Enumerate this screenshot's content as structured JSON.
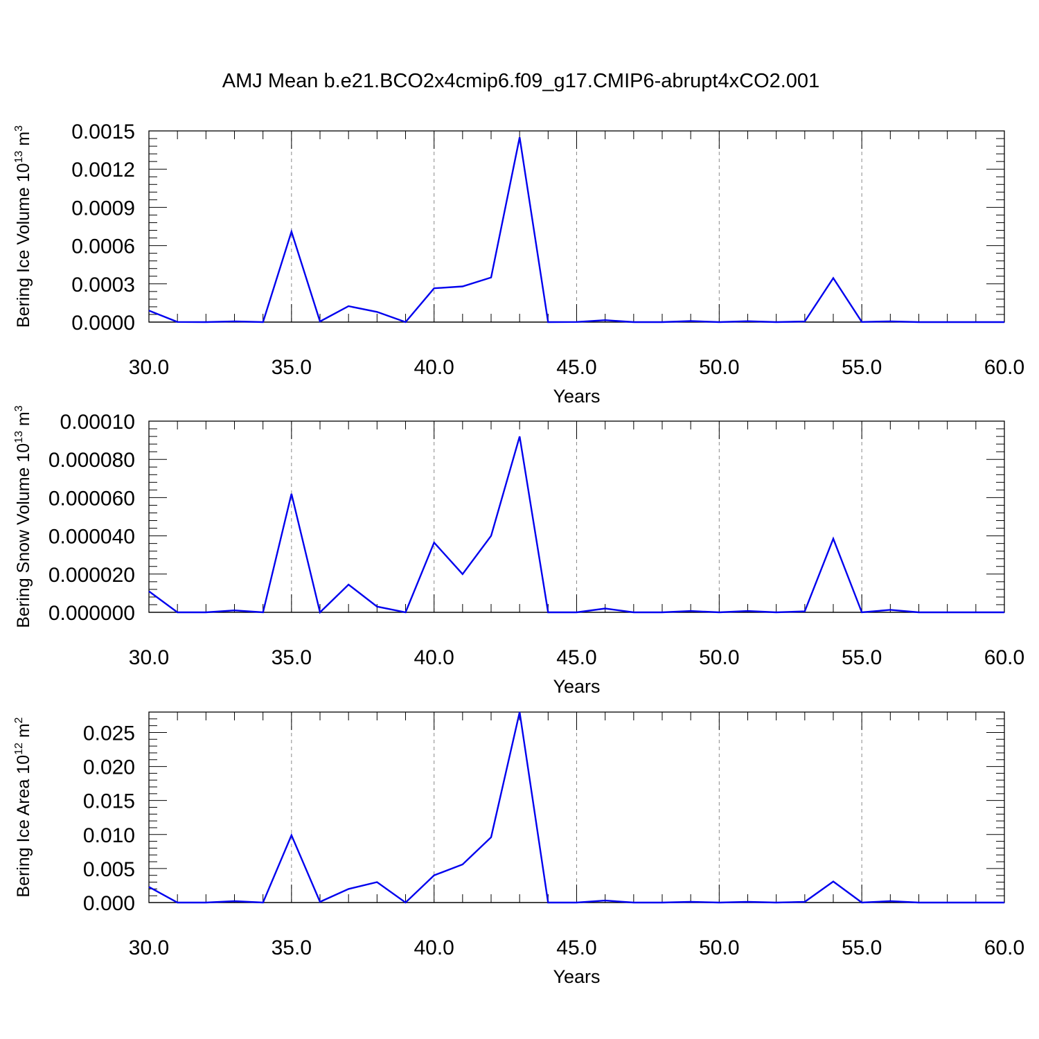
{
  "title": "AMJ Mean b.e21.BCO2x4cmip6.f09_g17.CMIP6-abrupt4xCO2.001",
  "colors": {
    "series": "#0000ee",
    "axes": "#000000",
    "grid": "#888888"
  },
  "chart_data": [
    {
      "type": "line",
      "xlabel": "Years",
      "ylabel": "Bering Ice Volume 10",
      "ylabel_sup": "13",
      "ylabel_unit": " m",
      "ylabel_unit_sup": "3",
      "xlim": [
        30,
        60
      ],
      "ylim": [
        0,
        0.0015
      ],
      "xticks": [
        30,
        35,
        40,
        45,
        50,
        55,
        60
      ],
      "xtick_labels": [
        "30.0",
        "35.0",
        "40.0",
        "45.0",
        "50.0",
        "55.0",
        "60.0"
      ],
      "yticks": [
        0,
        0.0003,
        0.0006,
        0.0009,
        0.0012,
        0.0015
      ],
      "ytick_labels": [
        "0.0000",
        "0.0003",
        "0.0006",
        "0.0009",
        "0.0012",
        "0.0015"
      ],
      "grid": "dashed vertical at major x ticks",
      "x": [
        30,
        31,
        32,
        33,
        34,
        35,
        36,
        37,
        38,
        39,
        40,
        41,
        42,
        43,
        44,
        45,
        46,
        47,
        48,
        49,
        50,
        51,
        52,
        53,
        54,
        55,
        56,
        57,
        58,
        59,
        60
      ],
      "series": [
        {
          "values": [
            9e-05,
            1e-06,
            0.0,
            6e-06,
            0.0,
            0.00071,
            5e-06,
            0.000125,
            8e-05,
            0.0,
            0.000265,
            0.00028,
            0.00035,
            0.00145,
            0.0,
            1e-06,
            1.5e-05,
            0.0,
            0.0,
            8e-06,
            0.0,
            7e-06,
            0.0,
            5e-06,
            0.000345,
            1e-06,
            6e-06,
            0.0,
            0.0,
            0.0,
            0.0
          ]
        }
      ]
    },
    {
      "type": "line",
      "xlabel": "Years",
      "ylabel": "Bering Snow Volume 10",
      "ylabel_sup": "13",
      "ylabel_unit": " m",
      "ylabel_unit_sup": "3",
      "xlim": [
        30,
        60
      ],
      "ylim": [
        0,
        0.0001
      ],
      "xticks": [
        30,
        35,
        40,
        45,
        50,
        55,
        60
      ],
      "xtick_labels": [
        "30.0",
        "35.0",
        "40.0",
        "45.0",
        "50.0",
        "55.0",
        "60.0"
      ],
      "yticks": [
        0,
        2e-05,
        4e-05,
        6e-05,
        8e-05,
        0.0001
      ],
      "ytick_labels": [
        "0.000000",
        "0.000020",
        "0.000040",
        "0.000060",
        "0.000080",
        "0.00010"
      ],
      "grid": "dashed vertical at major x ticks",
      "x": [
        30,
        31,
        32,
        33,
        34,
        35,
        36,
        37,
        38,
        39,
        40,
        41,
        42,
        43,
        44,
        45,
        46,
        47,
        48,
        49,
        50,
        51,
        52,
        53,
        54,
        55,
        56,
        57,
        58,
        59,
        60
      ],
      "series": [
        {
          "values": [
            1.1e-05,
            0.0,
            0.0,
            1e-06,
            0.0,
            6.2e-05,
            0.0,
            1.45e-05,
            3e-06,
            0.0,
            3.65e-05,
            2e-05,
            4e-05,
            9.2e-05,
            0.0,
            0.0,
            2e-06,
            0.0,
            0.0,
            7e-07,
            0.0,
            7e-07,
            0.0,
            5e-07,
            3.85e-05,
            0.0,
            1.3e-06,
            0.0,
            0.0,
            0.0,
            0.0
          ]
        }
      ]
    },
    {
      "type": "line",
      "xlabel": "Years",
      "ylabel": "Bering Ice Area 10",
      "ylabel_sup": "12",
      "ylabel_unit": " m",
      "ylabel_unit_sup": "2",
      "xlim": [
        30,
        60
      ],
      "ylim": [
        0,
        0.028
      ],
      "xticks": [
        30,
        35,
        40,
        45,
        50,
        55,
        60
      ],
      "xtick_labels": [
        "30.0",
        "35.0",
        "40.0",
        "45.0",
        "50.0",
        "55.0",
        "60.0"
      ],
      "yticks": [
        0,
        0.005,
        0.01,
        0.015,
        0.02,
        0.025
      ],
      "ytick_labels": [
        "0.000",
        "0.005",
        "0.010",
        "0.015",
        "0.020",
        "0.025"
      ],
      "grid": "dashed vertical at major x ticks",
      "x": [
        30,
        31,
        32,
        33,
        34,
        35,
        36,
        37,
        38,
        39,
        40,
        41,
        42,
        43,
        44,
        45,
        46,
        47,
        48,
        49,
        50,
        51,
        52,
        53,
        54,
        55,
        56,
        57,
        58,
        59,
        60
      ],
      "series": [
        {
          "values": [
            0.0023,
            0.0,
            0.0,
            0.0002,
            0.0,
            0.0099,
            0.0001,
            0.002,
            0.003,
            0.0,
            0.004,
            0.0056,
            0.0096,
            0.028,
            0.0,
            0.0,
            0.0003,
            0.0,
            0.0,
            0.0001,
            0.0,
            0.0001,
            0.0,
            0.0001,
            0.0031,
            0.0,
            0.0002,
            0.0,
            0.0,
            0.0,
            0.0
          ]
        }
      ]
    }
  ]
}
